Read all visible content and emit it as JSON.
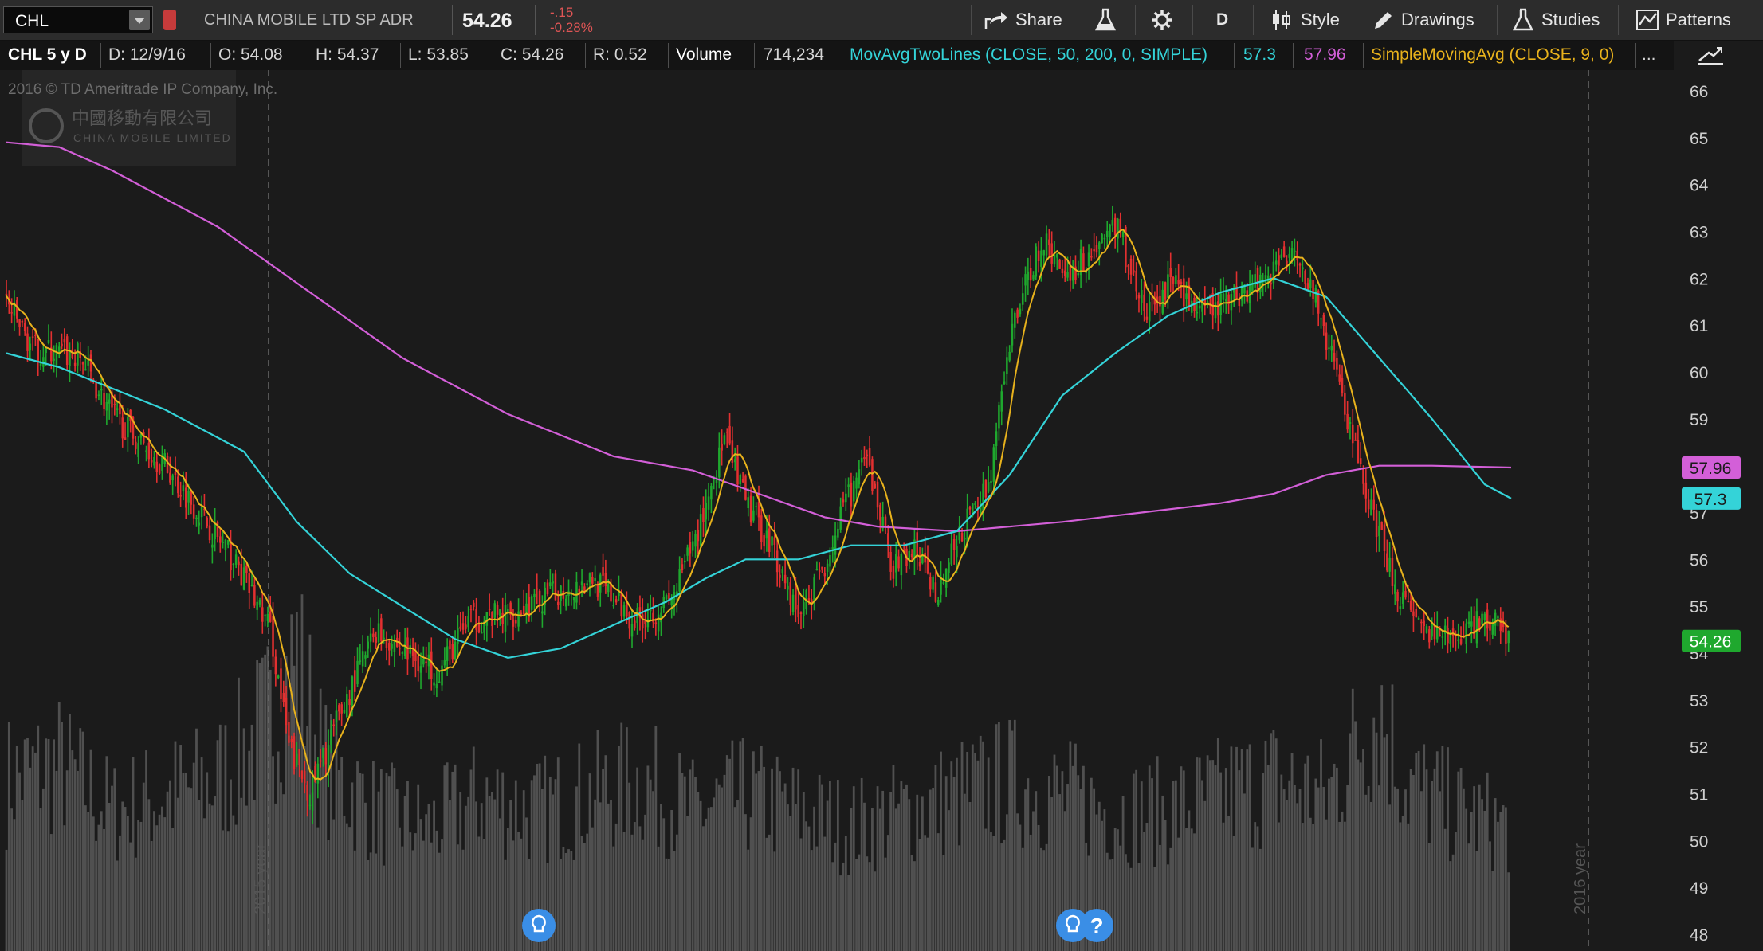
{
  "toolbar": {
    "symbol": "CHL",
    "company_name": "CHINA MOBILE LTD SP ADR",
    "last_price": "54.26",
    "change_abs": "-.15",
    "change_pct": "-0.28%",
    "share_label": "Share",
    "period_label": "D",
    "style_label": "Style",
    "drawings_label": "Drawings",
    "studies_label": "Studies",
    "patterns_label": "Patterns"
  },
  "infobar": {
    "title": "CHL 5 y D",
    "date": "D:  12/9/16",
    "open": "O:  54.08",
    "high": "H:  54.37",
    "low": "L:  53.85",
    "close": "C:  54.26",
    "range": "R:  0.52",
    "volume_label": "Volume",
    "volume_value": "714,234",
    "study1": "MovAvgTwoLines (CLOSE, 50, 200, 0, SIMPLE)",
    "study1_v1": "57.3",
    "study1_v2": "57.96",
    "study2": "SimpleMovingAvg (CLOSE, 9, 0)",
    "more": "..."
  },
  "watermark": {
    "copyright": "2016 © TD Ameritrade IP Company, Inc.",
    "logo_cn": "中國移動有限公司",
    "logo_en": "CHINA MOBILE LIMITED"
  },
  "year_labels": [
    "2015 year",
    "2016 year"
  ],
  "colors": {
    "up": "#1fa82e",
    "down": "#e23030",
    "ma50": "#34d3d8",
    "ma200": "#d35fd8",
    "sma9": "#e8b21c",
    "volume": "#505050",
    "last_price_badge": "#1fa82e"
  },
  "chart_data": {
    "type": "candlestick",
    "period": "5 y D",
    "y_ticks": [
      66,
      65,
      64,
      63,
      62,
      61,
      60,
      59,
      58,
      57,
      56,
      55,
      54,
      53,
      52,
      51,
      50,
      49,
      48
    ],
    "ylim": [
      48,
      66
    ],
    "legend": "top",
    "grid": false,
    "price_badges": [
      {
        "label": "57.96",
        "series": "ma200"
      },
      {
        "label": "57.3",
        "series": "ma50"
      },
      {
        "label": "54.26",
        "series": "last"
      }
    ],
    "price_path": [
      [
        0,
        61.5
      ],
      [
        10,
        60.5
      ],
      [
        28,
        60.3
      ],
      [
        40,
        59.1
      ],
      [
        60,
        58
      ],
      [
        72,
        57.1
      ],
      [
        88,
        55.8
      ],
      [
        100,
        54.5
      ],
      [
        107,
        52
      ],
      [
        115,
        51
      ],
      [
        125,
        52.5
      ],
      [
        140,
        54.5
      ],
      [
        152,
        54
      ],
      [
        164,
        53.6
      ],
      [
        175,
        54.7
      ],
      [
        190,
        54.8
      ],
      [
        205,
        55.2
      ],
      [
        222,
        55.6
      ],
      [
        238,
        54.7
      ],
      [
        252,
        55.1
      ],
      [
        262,
        56.6
      ],
      [
        272,
        58.6
      ],
      [
        280,
        57.2
      ],
      [
        290,
        56.3
      ],
      [
        300,
        54.8
      ],
      [
        310,
        55.9
      ],
      [
        318,
        57.2
      ],
      [
        326,
        58.1
      ],
      [
        336,
        55.8
      ],
      [
        344,
        56.2
      ],
      [
        352,
        55.3
      ],
      [
        362,
        56.6
      ],
      [
        372,
        57.6
      ],
      [
        382,
        61.2
      ],
      [
        392,
        62.8
      ],
      [
        402,
        62.1
      ],
      [
        412,
        62.6
      ],
      [
        420,
        63.2
      ],
      [
        432,
        61.2
      ],
      [
        442,
        62
      ],
      [
        452,
        61.2
      ],
      [
        462,
        61.5
      ],
      [
        470,
        61.8
      ],
      [
        480,
        62.2
      ],
      [
        488,
        62.8
      ],
      [
        496,
        61.5
      ],
      [
        506,
        59.5
      ],
      [
        516,
        57.2
      ],
      [
        526,
        55.5
      ],
      [
        534,
        54.5
      ],
      [
        546,
        54.3
      ],
      [
        556,
        54.6
      ],
      [
        566,
        54.7
      ],
      [
        570,
        54.26
      ]
    ],
    "ma50_path": [
      [
        0,
        60.4
      ],
      [
        20,
        60.1
      ],
      [
        60,
        59.2
      ],
      [
        90,
        58.3
      ],
      [
        110,
        56.8
      ],
      [
        130,
        55.7
      ],
      [
        150,
        55
      ],
      [
        170,
        54.3
      ],
      [
        190,
        53.9
      ],
      [
        210,
        54.1
      ],
      [
        230,
        54.6
      ],
      [
        250,
        55.1
      ],
      [
        265,
        55.6
      ],
      [
        280,
        56
      ],
      [
        300,
        56
      ],
      [
        320,
        56.3
      ],
      [
        340,
        56.3
      ],
      [
        360,
        56.6
      ],
      [
        380,
        57.8
      ],
      [
        400,
        59.5
      ],
      [
        420,
        60.4
      ],
      [
        440,
        61.2
      ],
      [
        460,
        61.7
      ],
      [
        480,
        62
      ],
      [
        500,
        61.6
      ],
      [
        520,
        60.3
      ],
      [
        540,
        59
      ],
      [
        560,
        57.6
      ],
      [
        570,
        57.3
      ]
    ],
    "ma200_path": [
      [
        0,
        64.9
      ],
      [
        20,
        64.8
      ],
      [
        40,
        64.3
      ],
      [
        80,
        63.1
      ],
      [
        120,
        61.5
      ],
      [
        150,
        60.3
      ],
      [
        190,
        59.1
      ],
      [
        230,
        58.2
      ],
      [
        260,
        57.9
      ],
      [
        290,
        57.3
      ],
      [
        310,
        56.9
      ],
      [
        330,
        56.7
      ],
      [
        360,
        56.6
      ],
      [
        380,
        56.7
      ],
      [
        400,
        56.8
      ],
      [
        430,
        57
      ],
      [
        460,
        57.2
      ],
      [
        480,
        57.4
      ],
      [
        500,
        57.8
      ],
      [
        520,
        58
      ],
      [
        540,
        58
      ],
      [
        570,
        57.96
      ]
    ],
    "volume_profile": [
      [
        0,
        0.55
      ],
      [
        20,
        0.6
      ],
      [
        40,
        0.45
      ],
      [
        60,
        0.5
      ],
      [
        80,
        0.55
      ],
      [
        100,
        0.75
      ],
      [
        110,
        0.95
      ],
      [
        120,
        0.6
      ],
      [
        140,
        0.45
      ],
      [
        160,
        0.4
      ],
      [
        180,
        0.5
      ],
      [
        200,
        0.45
      ],
      [
        220,
        0.5
      ],
      [
        240,
        0.55
      ],
      [
        260,
        0.45
      ],
      [
        280,
        0.5
      ],
      [
        300,
        0.45
      ],
      [
        320,
        0.4
      ],
      [
        340,
        0.45
      ],
      [
        360,
        0.5
      ],
      [
        380,
        0.55
      ],
      [
        400,
        0.5
      ],
      [
        420,
        0.45
      ],
      [
        440,
        0.45
      ],
      [
        460,
        0.5
      ],
      [
        480,
        0.55
      ],
      [
        500,
        0.5
      ],
      [
        510,
        0.65
      ],
      [
        520,
        0.8
      ],
      [
        530,
        0.55
      ],
      [
        550,
        0.45
      ],
      [
        570,
        0.4
      ]
    ],
    "n_bars": 570
  }
}
